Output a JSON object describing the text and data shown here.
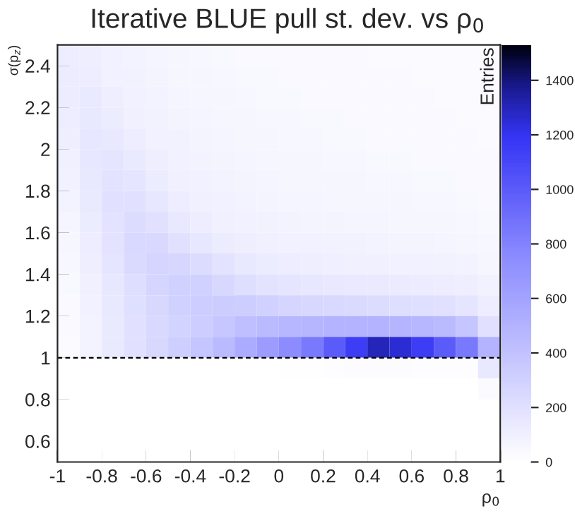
{
  "chart_data": {
    "type": "heatmap",
    "title": "Iterative BLUE pull st. dev. vs ρ$_{0}$",
    "xlabel": "ρ$_{0}$",
    "ylabel": "σ(p$_{z}$)",
    "clabel": "Entries",
    "x": [
      -0.95,
      -0.85,
      -0.75,
      -0.65,
      -0.55,
      -0.45,
      -0.35,
      -0.25,
      -0.15,
      -0.05,
      0.05,
      0.15,
      0.25,
      0.35,
      0.45,
      0.55,
      0.65,
      0.75,
      0.85,
      0.95
    ],
    "y": [
      2.45,
      2.35,
      2.25,
      2.15,
      2.05,
      1.95,
      1.85,
      1.75,
      1.65,
      1.55,
      1.45,
      1.35,
      1.25,
      1.15,
      1.05,
      0.95,
      0.85,
      0.75,
      0.65,
      0.55
    ],
    "xlim": [
      -1,
      1
    ],
    "ylim": [
      0.5,
      2.5
    ],
    "xticks": [
      -1,
      -0.8,
      -0.6,
      -0.4,
      -0.2,
      0,
      0.2,
      0.4,
      0.6,
      0.8,
      1
    ],
    "yticks": [
      0.6,
      0.8,
      1,
      1.2,
      1.4,
      1.6,
      1.8,
      2,
      2.2,
      2.4
    ],
    "clim": [
      0,
      1530
    ],
    "cticks": [
      0,
      200,
      400,
      600,
      800,
      1000,
      1200,
      1400
    ],
    "ref_lines": [
      {
        "axis": "y",
        "value": 1,
        "line_style": "dashed",
        "color": "#000000"
      }
    ],
    "grid": false,
    "cells": [
      [
        120,
        110,
        90,
        80,
        70,
        60,
        55,
        50,
        45,
        45,
        40,
        40,
        40,
        40,
        35,
        35,
        35,
        30,
        30,
        25
      ],
      [
        130,
        120,
        95,
        85,
        75,
        65,
        60,
        55,
        50,
        50,
        45,
        45,
        45,
        40,
        40,
        40,
        35,
        35,
        30,
        30
      ],
      [
        130,
        140,
        110,
        90,
        80,
        70,
        65,
        60,
        55,
        50,
        50,
        45,
        45,
        45,
        40,
        40,
        40,
        35,
        35,
        30
      ],
      [
        120,
        150,
        130,
        100,
        85,
        75,
        70,
        65,
        60,
        55,
        55,
        50,
        50,
        45,
        45,
        40,
        40,
        40,
        35,
        35
      ],
      [
        110,
        160,
        150,
        120,
        95,
        85,
        75,
        70,
        65,
        60,
        55,
        55,
        50,
        50,
        45,
        45,
        40,
        40,
        40,
        35
      ],
      [
        100,
        160,
        170,
        140,
        110,
        90,
        80,
        75,
        70,
        65,
        60,
        60,
        55,
        55,
        50,
        50,
        45,
        45,
        40,
        40
      ],
      [
        90,
        150,
        190,
        170,
        130,
        100,
        90,
        80,
        75,
        70,
        65,
        65,
        60,
        60,
        55,
        55,
        50,
        50,
        45,
        40
      ],
      [
        80,
        140,
        200,
        200,
        160,
        120,
        100,
        90,
        80,
        75,
        70,
        70,
        65,
        65,
        60,
        60,
        55,
        55,
        50,
        45
      ],
      [
        70,
        130,
        190,
        230,
        200,
        150,
        120,
        100,
        95,
        85,
        80,
        75,
        75,
        70,
        70,
        65,
        65,
        60,
        55,
        50
      ],
      [
        60,
        120,
        180,
        250,
        250,
        200,
        160,
        130,
        110,
        100,
        95,
        90,
        85,
        85,
        80,
        75,
        75,
        70,
        65,
        55
      ],
      [
        55,
        110,
        170,
        240,
        280,
        270,
        230,
        180,
        150,
        130,
        120,
        110,
        105,
        100,
        100,
        95,
        90,
        85,
        80,
        65
      ],
      [
        50,
        100,
        160,
        220,
        280,
        300,
        300,
        260,
        220,
        190,
        170,
        160,
        150,
        145,
        140,
        135,
        130,
        120,
        110,
        85
      ],
      [
        45,
        90,
        150,
        210,
        260,
        300,
        330,
        340,
        330,
        300,
        280,
        260,
        250,
        240,
        230,
        220,
        210,
        200,
        170,
        120
      ],
      [
        40,
        80,
        140,
        200,
        250,
        290,
        330,
        370,
        420,
        450,
        470,
        480,
        500,
        500,
        500,
        490,
        470,
        450,
        380,
        200
      ],
      [
        35,
        80,
        140,
        200,
        260,
        320,
        380,
        450,
        550,
        650,
        750,
        850,
        1000,
        1150,
        1300,
        1250,
        1150,
        1000,
        850,
        500
      ],
      [
        0,
        0,
        0,
        0,
        0,
        0,
        0,
        0,
        2,
        5,
        8,
        10,
        15,
        20,
        20,
        20,
        15,
        15,
        15,
        150
      ],
      [
        0,
        0,
        0,
        0,
        0,
        0,
        0,
        0,
        0,
        0,
        0,
        0,
        0,
        0,
        0,
        0,
        0,
        0,
        0,
        30
      ],
      [
        0,
        0,
        0,
        0,
        0,
        0,
        0,
        0,
        0,
        0,
        0,
        0,
        0,
        0,
        0,
        0,
        0,
        0,
        0,
        0
      ],
      [
        0,
        0,
        0,
        0,
        0,
        0,
        0,
        0,
        0,
        0,
        0,
        0,
        0,
        0,
        0,
        0,
        0,
        0,
        0,
        0
      ],
      [
        0,
        0,
        0,
        0,
        0,
        0,
        0,
        0,
        0,
        0,
        0,
        0,
        0,
        0,
        0,
        0,
        0,
        0,
        0,
        0
      ]
    ]
  }
}
